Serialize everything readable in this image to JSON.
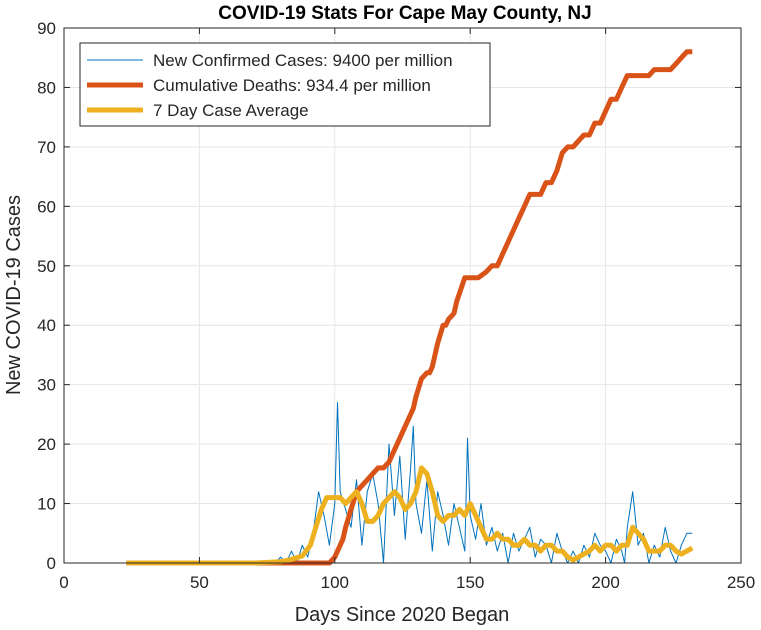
{
  "chart_data": {
    "type": "line",
    "title": "COVID-19 Stats For Cape May County, NJ",
    "xlabel": "Days Since 2020 Began",
    "ylabel": "New COVID-19 Cases",
    "xlim": [
      0,
      250
    ],
    "ylim": [
      0,
      90
    ],
    "xticks": [
      0,
      50,
      100,
      150,
      200,
      250
    ],
    "yticks": [
      0,
      10,
      20,
      30,
      40,
      50,
      60,
      70,
      80,
      90
    ],
    "grid": true,
    "legend_position": "top-left",
    "series": [
      {
        "name": "New Confirmed Cases: 9400 per million",
        "color": "#0072BD",
        "line_width": "thin",
        "x": [
          23,
          30,
          40,
          50,
          60,
          70,
          78,
          80,
          82,
          84,
          86,
          88,
          90,
          92,
          94,
          96,
          98,
          100,
          101,
          102,
          104,
          106,
          108,
          110,
          112,
          114,
          116,
          118,
          120,
          122,
          124,
          126,
          128,
          129,
          130,
          132,
          134,
          136,
          138,
          140,
          142,
          144,
          146,
          148,
          149,
          150,
          152,
          154,
          156,
          158,
          160,
          162,
          164,
          166,
          168,
          170,
          172,
          174,
          176,
          178,
          180,
          182,
          184,
          186,
          188,
          190,
          192,
          194,
          196,
          198,
          200,
          202,
          204,
          206,
          207,
          208,
          210,
          212,
          214,
          216,
          218,
          220,
          222,
          224,
          226,
          228,
          230,
          232
        ],
        "values": [
          0,
          0,
          0,
          0,
          0,
          0,
          0,
          1,
          0,
          2,
          0,
          3,
          1,
          5,
          12,
          8,
          3,
          10,
          27,
          12,
          9,
          6,
          14,
          3,
          12,
          15,
          10,
          0,
          20,
          8,
          18,
          4,
          16,
          23,
          10,
          5,
          14,
          2,
          12,
          8,
          3,
          10,
          6,
          2,
          21,
          8,
          4,
          10,
          3,
          6,
          2,
          5,
          0,
          5,
          2,
          4,
          6,
          1,
          4,
          3,
          0,
          5,
          2,
          0,
          2,
          0,
          3,
          1,
          5,
          3,
          2,
          0,
          4,
          2,
          0,
          6,
          12,
          3,
          5,
          0,
          3,
          1,
          6,
          2,
          0,
          3,
          5,
          5
        ]
      },
      {
        "name": "Cumulative Deaths: 934.4 per million",
        "color": "#D95319",
        "line_width": "thick",
        "x": [
          23,
          50,
          90,
          92,
          94,
          96,
          98,
          100,
          101,
          103,
          104,
          106,
          108,
          110,
          112,
          114,
          116,
          118,
          120,
          122,
          124,
          126,
          128,
          129,
          130,
          132,
          134,
          135,
          136,
          138,
          140,
          141,
          142,
          144,
          145,
          148,
          150,
          152,
          153,
          156,
          158,
          160,
          162,
          164,
          166,
          168,
          170,
          172,
          174,
          176,
          178,
          180,
          182,
          184,
          186,
          188,
          190,
          192,
          193,
          194,
          196,
          198,
          200,
          202,
          204,
          206,
          208,
          210,
          212,
          214,
          216,
          218,
          220,
          222,
          224,
          226,
          228,
          230,
          232
        ],
        "values": [
          0,
          0,
          0,
          0,
          0,
          0,
          0,
          1,
          2,
          4,
          6,
          9,
          12,
          13,
          14,
          15,
          16,
          16,
          17,
          19,
          21,
          23,
          25,
          26,
          28,
          31,
          32,
          32,
          33,
          37,
          40,
          40,
          41,
          42,
          44,
          48,
          48,
          48,
          48,
          49,
          50,
          50,
          52,
          54,
          56,
          58,
          60,
          62,
          62,
          62,
          64,
          64,
          66,
          69,
          70,
          70,
          71,
          72,
          72,
          72,
          74,
          74,
          76,
          78,
          78,
          80,
          82,
          82,
          82,
          82,
          82,
          83,
          83,
          83,
          83,
          84,
          85,
          86,
          86
        ]
      },
      {
        "name": "7 Day Case Average",
        "color": "#EDB120",
        "line_width": "thick",
        "x": [
          23,
          30,
          40,
          50,
          60,
          70,
          80,
          84,
          88,
          91,
          93,
          95,
          97,
          100,
          102,
          104,
          106,
          108,
          110,
          112,
          114,
          116,
          118,
          120,
          122,
          124,
          126,
          128,
          130,
          132,
          134,
          136,
          138,
          140,
          142,
          144,
          146,
          148,
          150,
          152,
          154,
          156,
          158,
          160,
          162,
          164,
          166,
          168,
          170,
          172,
          174,
          176,
          178,
          180,
          182,
          184,
          186,
          188,
          190,
          192,
          194,
          196,
          198,
          200,
          202,
          204,
          206,
          208,
          210,
          212,
          214,
          216,
          218,
          220,
          222,
          224,
          226,
          228,
          230,
          232
        ],
        "values": [
          0,
          0,
          0,
          0,
          0,
          0,
          0.2,
          0.6,
          1.2,
          3,
          6,
          9,
          11,
          11,
          11,
          10,
          11,
          12,
          10,
          7,
          7,
          8,
          10,
          11,
          12,
          11,
          9,
          10,
          12,
          16,
          15,
          12,
          8,
          7,
          8,
          8,
          9,
          8,
          10,
          8,
          6,
          4,
          4,
          5,
          4,
          4,
          3,
          3,
          4,
          3,
          3,
          2,
          3,
          3,
          2,
          2,
          1,
          0.5,
          1,
          1.5,
          2,
          3,
          2,
          3,
          3,
          2,
          3,
          3,
          6,
          5,
          4,
          2,
          2,
          2,
          3,
          3,
          2,
          1.5,
          2,
          2.5
        ]
      }
    ]
  }
}
